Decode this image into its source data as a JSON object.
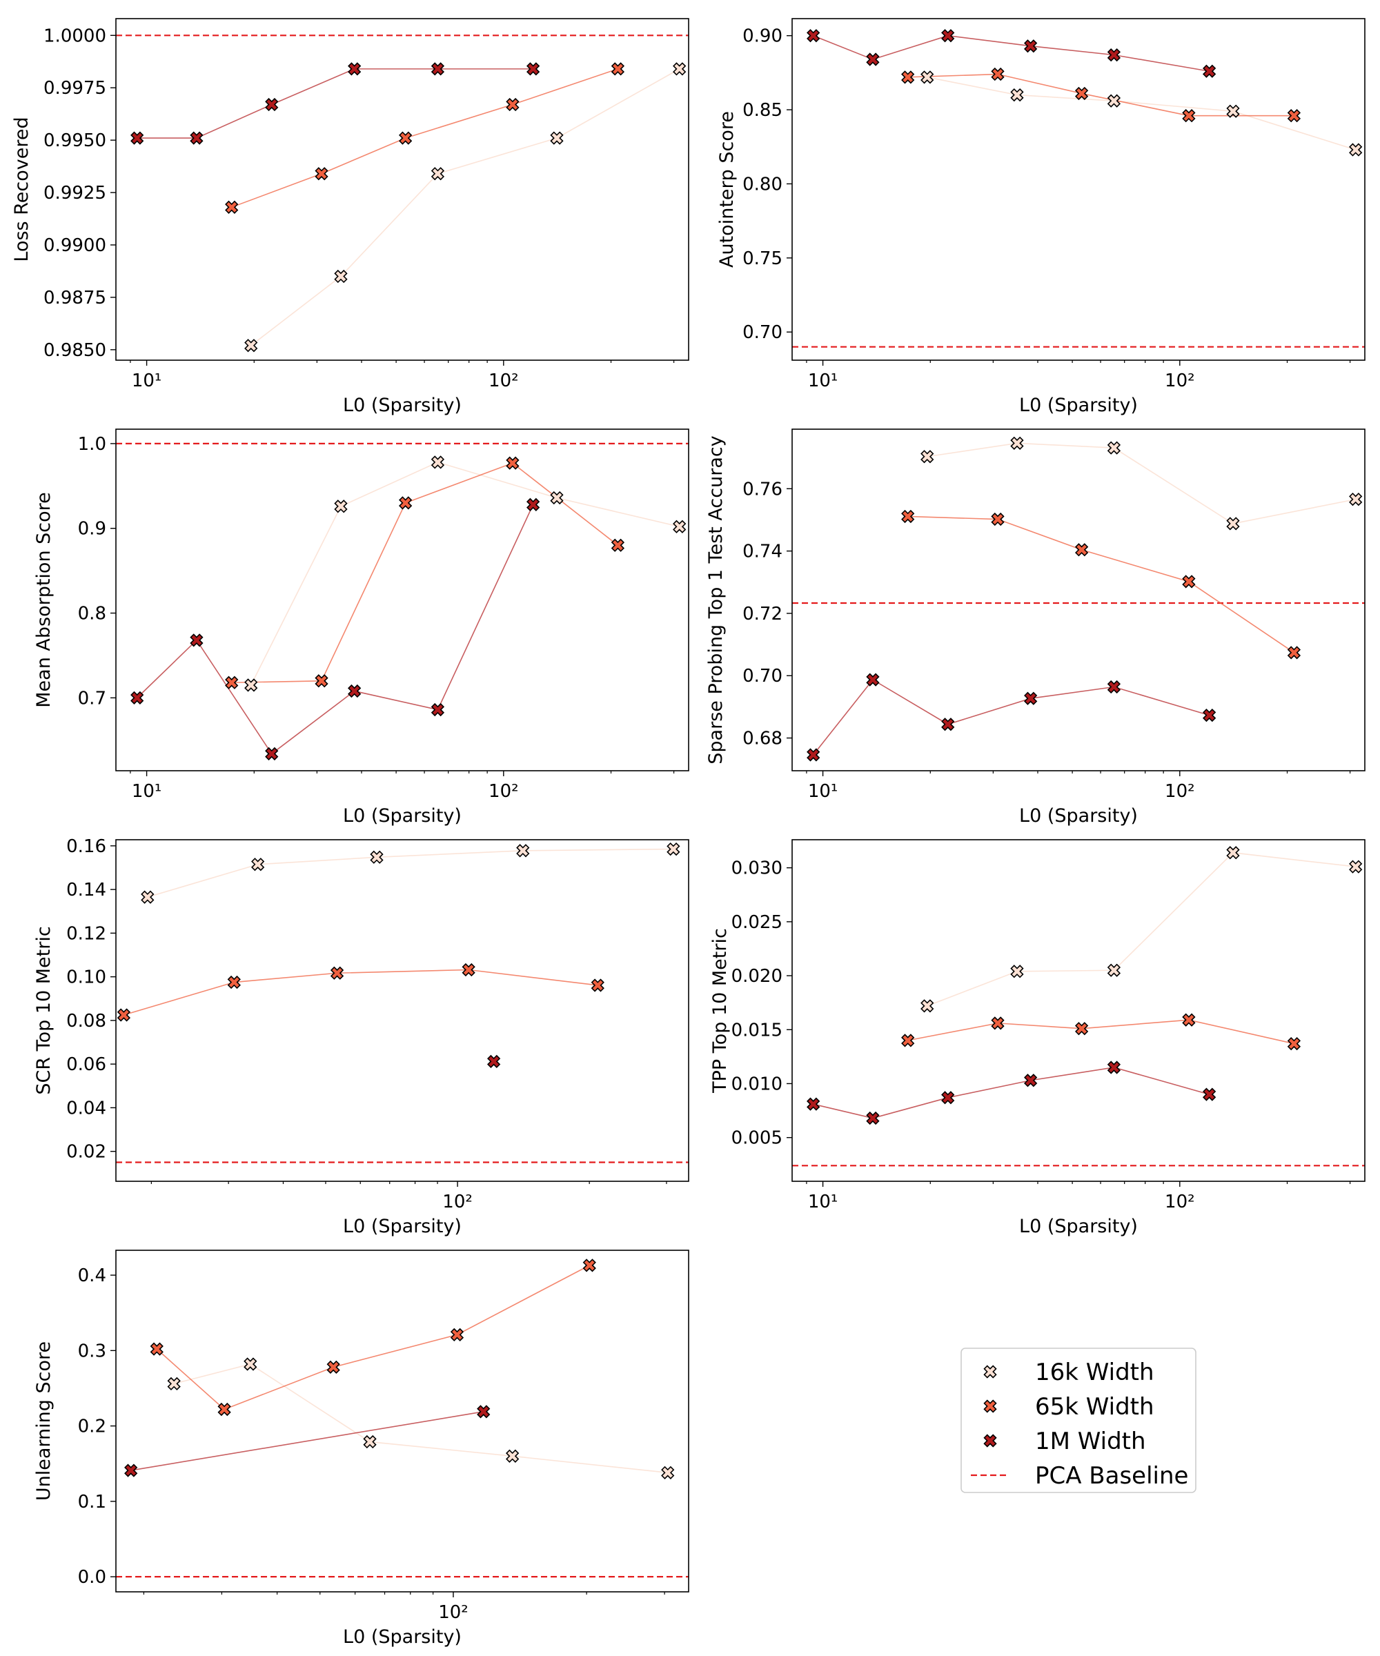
{
  "colors": {
    "series_16k": "#fbe1d4",
    "series_65k": "#f0603f",
    "series_1m": "#b01a1c",
    "baseline": "#e41a1c",
    "marker_edge": "#000000",
    "frame": "#000000"
  },
  "legend": {
    "items": [
      {
        "label": "16k Width",
        "key": "s16k"
      },
      {
        "label": "65k Width",
        "key": "s65k"
      },
      {
        "label": "1M Width",
        "key": "s1m"
      },
      {
        "label": "PCA Baseline",
        "key": "baseline"
      }
    ]
  },
  "chart_data": [
    {
      "type": "scatter",
      "id": "loss",
      "xscale": "log",
      "title": "",
      "xlabel": "L0 (Sparsity)",
      "ylabel": "Loss Recovered",
      "xlim": [
        8.2,
        330
      ],
      "ylim": [
        0.9845,
        1.0008
      ],
      "xticks": [
        {
          "value": 10,
          "label": "10¹"
        },
        {
          "value": 100,
          "label": "10²"
        }
      ],
      "yticks": [
        {
          "value": 0.985,
          "label": "0.9850"
        },
        {
          "value": 0.9875,
          "label": "0.9875"
        },
        {
          "value": 0.99,
          "label": "0.9900"
        },
        {
          "value": 0.9925,
          "label": "0.9925"
        },
        {
          "value": 0.995,
          "label": "0.9950"
        },
        {
          "value": 0.9975,
          "label": "0.9975"
        },
        {
          "value": 1.0,
          "label": "1.0000"
        }
      ],
      "baseline": 1.0,
      "series": [
        {
          "name": "16k Width",
          "key": "s16k",
          "x": [
            19.6,
            35,
            65.4,
            141,
            311
          ],
          "y": [
            0.9852,
            0.9885,
            0.9934,
            0.9951,
            0.9984
          ]
        },
        {
          "name": "65k Width",
          "key": "s65k",
          "x": [
            17.3,
            30.9,
            53.1,
            106,
            209
          ],
          "y": [
            0.9918,
            0.9934,
            0.9951,
            0.9967,
            0.9984
          ]
        },
        {
          "name": "1M Width",
          "key": "s1m",
          "x": [
            9.4,
            13.8,
            22.4,
            38.2,
            65.4,
            121
          ],
          "y": [
            0.9951,
            0.9951,
            0.9967,
            0.9984,
            0.9984,
            0.9984
          ]
        }
      ]
    },
    {
      "type": "scatter",
      "id": "autointerp",
      "xscale": "log",
      "title": "",
      "xlabel": "L0 (Sparsity)",
      "ylabel": "Autointerp Score",
      "xlim": [
        8.2,
        330
      ],
      "ylim": [
        0.681,
        0.9115
      ],
      "xticks": [
        {
          "value": 10,
          "label": "10¹"
        },
        {
          "value": 100,
          "label": "10²"
        }
      ],
      "yticks": [
        {
          "value": 0.7,
          "label": "0.70"
        },
        {
          "value": 0.75,
          "label": "0.75"
        },
        {
          "value": 0.8,
          "label": "0.80"
        },
        {
          "value": 0.85,
          "label": "0.85"
        },
        {
          "value": 0.9,
          "label": "0.90"
        }
      ],
      "baseline": 0.69,
      "series": [
        {
          "name": "16k Width",
          "key": "s16k",
          "x": [
            19.6,
            35,
            65.4,
            141,
            311
          ],
          "y": [
            0.872,
            0.86,
            0.856,
            0.849,
            0.823
          ]
        },
        {
          "name": "65k Width",
          "key": "s65k",
          "x": [
            17.3,
            30.9,
            53.1,
            106,
            209
          ],
          "y": [
            0.872,
            0.874,
            0.861,
            0.846,
            0.846
          ]
        },
        {
          "name": "1M Width",
          "key": "s1m",
          "x": [
            9.4,
            13.8,
            22.4,
            38.2,
            65.4,
            121
          ],
          "y": [
            0.9,
            0.884,
            0.9,
            0.893,
            0.887,
            0.876
          ]
        }
      ]
    },
    {
      "type": "scatter",
      "id": "absorption",
      "xscale": "log",
      "title": "",
      "xlabel": "L0 (Sparsity)",
      "ylabel": "Mean Absorption Score",
      "xlim": [
        8.2,
        330
      ],
      "ylim": [
        0.614,
        1.017
      ],
      "xticks": [
        {
          "value": 10,
          "label": "10¹"
        },
        {
          "value": 100,
          "label": "10²"
        }
      ],
      "yticks": [
        {
          "value": 0.7,
          "label": "0.7"
        },
        {
          "value": 0.8,
          "label": "0.8"
        },
        {
          "value": 0.9,
          "label": "0.9"
        },
        {
          "value": 1.0,
          "label": "1.0"
        }
      ],
      "baseline": 1.0,
      "series": [
        {
          "name": "16k Width",
          "key": "s16k",
          "x": [
            19.6,
            35,
            65.4,
            141,
            311
          ],
          "y": [
            0.715,
            0.926,
            0.978,
            0.936,
            0.902
          ]
        },
        {
          "name": "65k Width",
          "key": "s65k",
          "x": [
            17.3,
            30.9,
            53.1,
            106,
            209
          ],
          "y": [
            0.718,
            0.72,
            0.93,
            0.977,
            0.88
          ]
        },
        {
          "name": "1M Width",
          "key": "s1m",
          "x": [
            9.4,
            13.8,
            22.4,
            38.2,
            65.4,
            121
          ],
          "y": [
            0.7,
            0.768,
            0.634,
            0.708,
            0.686,
            0.928
          ]
        }
      ]
    },
    {
      "type": "scatter",
      "id": "sparse_probing",
      "xscale": "log",
      "title": "",
      "xlabel": "L0 (Sparsity)",
      "ylabel": "Sparse Probing Top 1 Test Accuracy",
      "xlim": [
        8.2,
        330
      ],
      "ylim": [
        0.6695,
        0.7791
      ],
      "xticks": [
        {
          "value": 10,
          "label": "10¹"
        },
        {
          "value": 100,
          "label": "10²"
        }
      ],
      "yticks": [
        {
          "value": 0.68,
          "label": "0.68"
        },
        {
          "value": 0.7,
          "label": "0.70"
        },
        {
          "value": 0.72,
          "label": "0.72"
        },
        {
          "value": 0.74,
          "label": "0.74"
        },
        {
          "value": 0.76,
          "label": "0.76"
        }
      ],
      "baseline": 0.7233,
      "series": [
        {
          "name": "16k Width",
          "key": "s16k",
          "x": [
            19.6,
            35,
            65.4,
            141,
            311
          ],
          "y": [
            0.7703,
            0.7746,
            0.7731,
            0.7488,
            0.7566
          ]
        },
        {
          "name": "65k Width",
          "key": "s65k",
          "x": [
            17.3,
            30.9,
            53.1,
            106,
            209
          ],
          "y": [
            0.7511,
            0.7502,
            0.7404,
            0.7302,
            0.7074
          ]
        },
        {
          "name": "1M Width",
          "key": "s1m",
          "x": [
            9.4,
            13.8,
            22.4,
            38.2,
            65.4,
            121
          ],
          "y": [
            0.6746,
            0.6987,
            0.6844,
            0.6927,
            0.6964,
            0.6873
          ]
        }
      ]
    },
    {
      "type": "scatter",
      "id": "scr",
      "xscale": "log",
      "title": "",
      "xlabel": "L0 (Sparsity)",
      "ylabel": "SCR Top 10 Metric",
      "xlim": [
        16.6,
        337
      ],
      "ylim": [
        0.0063,
        0.1628
      ],
      "xticks": [
        {
          "value": 100,
          "label": "10²"
        }
      ],
      "yticks": [
        {
          "value": 0.02,
          "label": "0.02"
        },
        {
          "value": 0.04,
          "label": "0.04"
        },
        {
          "value": 0.06,
          "label": "0.06"
        },
        {
          "value": 0.08,
          "label": "0.08"
        },
        {
          "value": 0.1,
          "label": "0.10"
        },
        {
          "value": 0.12,
          "label": "0.12"
        },
        {
          "value": 0.14,
          "label": "0.14"
        },
        {
          "value": 0.16,
          "label": "0.16"
        }
      ],
      "baseline": 0.015,
      "series": [
        {
          "name": "16k Width",
          "key": "s16k",
          "x": [
            19.6,
            35,
            65.4,
            141,
            311
          ],
          "y": [
            0.1365,
            0.1515,
            0.1548,
            0.1578,
            0.1585
          ]
        },
        {
          "name": "65k Width",
          "key": "s65k",
          "x": [
            17.3,
            30.9,
            53.1,
            106,
            209
          ],
          "y": [
            0.0825,
            0.0975,
            0.1017,
            0.1032,
            0.0961
          ]
        },
        {
          "name": "1M Width",
          "key": "s1m",
          "x": [
            121
          ],
          "y": [
            0.0612
          ]
        }
      ]
    },
    {
      "type": "scatter",
      "id": "tpp",
      "xscale": "log",
      "title": "",
      "xlabel": "L0 (Sparsity)",
      "ylabel": "TPP Top 10 Metric",
      "xlim": [
        8.2,
        330
      ],
      "ylim": [
        0.00095,
        0.0326
      ],
      "xticks": [
        {
          "value": 10,
          "label": "10¹"
        },
        {
          "value": 100,
          "label": "10²"
        }
      ],
      "yticks": [
        {
          "value": 0.005,
          "label": "0.005"
        },
        {
          "value": 0.01,
          "label": "0.010"
        },
        {
          "value": 0.015,
          "label": "0.015"
        },
        {
          "value": 0.02,
          "label": "0.020"
        },
        {
          "value": 0.025,
          "label": "0.025"
        },
        {
          "value": 0.03,
          "label": "0.030"
        }
      ],
      "baseline": 0.0024,
      "series": [
        {
          "name": "16k Width",
          "key": "s16k",
          "x": [
            19.6,
            35,
            65.4,
            141,
            311
          ],
          "y": [
            0.0172,
            0.0204,
            0.0205,
            0.0314,
            0.0301
          ]
        },
        {
          "name": "65k Width",
          "key": "s65k",
          "x": [
            17.3,
            30.9,
            53.1,
            106,
            209
          ],
          "y": [
            0.014,
            0.0156,
            0.0151,
            0.0159,
            0.0137
          ]
        },
        {
          "name": "1M Width",
          "key": "s1m",
          "x": [
            9.4,
            13.8,
            22.4,
            38.2,
            65.4,
            121
          ],
          "y": [
            0.0081,
            0.0068,
            0.0087,
            0.0103,
            0.0115,
            0.009
          ]
        }
      ]
    },
    {
      "type": "scatter",
      "id": "unlearning",
      "xscale": "log",
      "title": "",
      "xlabel": "L0 (Sparsity)",
      "ylabel": "Unlearning Score",
      "xlim": [
        17.3,
        340
      ],
      "ylim": [
        -0.02,
        0.433
      ],
      "xticks": [
        {
          "value": 100,
          "label": "10²"
        }
      ],
      "yticks": [
        {
          "value": 0.0,
          "label": "0.0"
        },
        {
          "value": 0.1,
          "label": "0.1"
        },
        {
          "value": 0.2,
          "label": "0.2"
        },
        {
          "value": 0.3,
          "label": "0.3"
        },
        {
          "value": 0.4,
          "label": "0.4"
        }
      ],
      "baseline": 0.0,
      "series": [
        {
          "name": "16k Width",
          "key": "s16k",
          "x": [
            23.4,
            34.8,
            64.8,
            136,
            305
          ],
          "y": [
            0.256,
            0.282,
            0.179,
            0.16,
            0.138
          ]
        },
        {
          "name": "65k Width",
          "key": "s65k",
          "x": [
            21.4,
            30.4,
            53.6,
            102,
            203
          ],
          "y": [
            0.302,
            0.222,
            0.278,
            0.321,
            0.413
          ]
        },
        {
          "name": "1M Width",
          "key": "s1m",
          "x": [
            18.7,
            117
          ],
          "y": [
            0.141,
            0.219
          ]
        }
      ]
    }
  ]
}
